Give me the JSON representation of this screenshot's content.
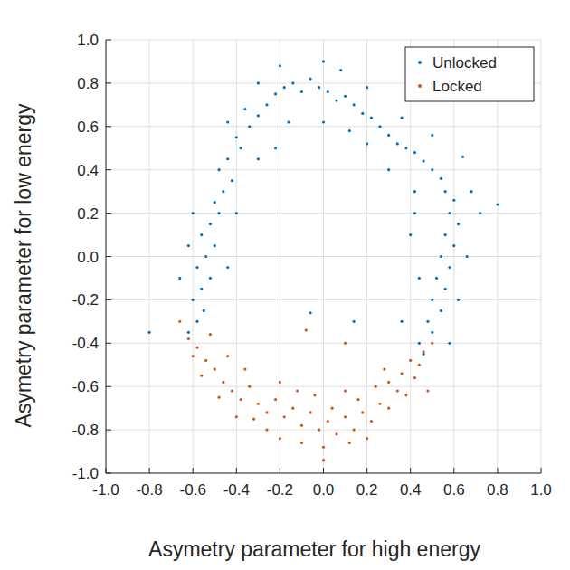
{
  "chart_data": {
    "type": "scatter",
    "x_label": "Asymetry parameter for high energy",
    "y_label": "Asymetry parameter for low energy",
    "xlim": [
      -1.0,
      1.0
    ],
    "ylim": [
      -1.0,
      1.0
    ],
    "xticks": [
      {
        "value": -1.0,
        "label": "-1.0"
      },
      {
        "value": -0.8,
        "label": "-0.8"
      },
      {
        "value": -0.6,
        "label": "-0.6"
      },
      {
        "value": -0.4,
        "label": "-0.4"
      },
      {
        "value": -0.2,
        "label": "-0.2"
      },
      {
        "value": 0,
        "label": "0.0"
      },
      {
        "value": 0.2,
        "label": "0.2"
      },
      {
        "value": 0.4,
        "label": "0.4"
      },
      {
        "value": 0.6,
        "label": "0.6"
      },
      {
        "value": 0.8,
        "label": "0.8"
      },
      {
        "value": 1.0,
        "label": "1.0"
      }
    ],
    "yticks": [
      {
        "value": -1.0,
        "label": "-1.0"
      },
      {
        "value": -0.8,
        "label": "-0.8"
      },
      {
        "value": -0.6,
        "label": "-0.6"
      },
      {
        "value": -0.4,
        "label": "-0.4"
      },
      {
        "value": -0.2,
        "label": "-0.2"
      },
      {
        "value": 0,
        "label": "0.0"
      },
      {
        "value": 0.2,
        "label": "0.2"
      },
      {
        "value": 0.4,
        "label": "0.4"
      },
      {
        "value": 0.6,
        "label": "0.6"
      },
      {
        "value": 0.8,
        "label": "0.8"
      },
      {
        "value": 1.0,
        "label": "1.0"
      }
    ],
    "grid": true,
    "legend": "top-right",
    "series": [
      {
        "name": "Unlocked",
        "color": "#0072bd",
        "marker": "dot",
        "x": [
          -0.62,
          -0.58,
          -0.55,
          -0.6,
          -0.56,
          -0.52,
          -0.58,
          -0.54,
          -0.5,
          -0.56,
          -0.52,
          -0.48,
          -0.5,
          -0.46,
          -0.42,
          -0.48,
          -0.44,
          -0.38,
          -0.4,
          -0.34,
          -0.3,
          -0.36,
          -0.26,
          -0.22,
          -0.18,
          -0.14,
          -0.1,
          -0.06,
          -0.02,
          0.02,
          0.06,
          0.1,
          0.14,
          0.18,
          0.22,
          0.26,
          0.3,
          0.34,
          0.38,
          0.42,
          0.46,
          0.5,
          0.54,
          0.56,
          0.6,
          0.58,
          0.62,
          0.56,
          0.6,
          0.54,
          0.58,
          0.52,
          0.56,
          0.5,
          0.54,
          0.48,
          0.5,
          0.44,
          0.46,
          -0.66,
          -0.62,
          -0.6,
          -0.44,
          -0.3,
          -0.2,
          0.0,
          0.08,
          0.2,
          0.36,
          0.5,
          0.64,
          0.68,
          0.72,
          0.8,
          0.66,
          0.62,
          0.58,
          -0.8,
          -0.44,
          -0.4,
          -0.3,
          -0.16,
          0.0,
          0.12,
          0.3,
          0.42,
          0.44,
          0.36,
          0.2,
          -0.22,
          -0.06,
          0.14,
          0.42,
          0.4
        ],
        "values": [
          -0.35,
          -0.3,
          -0.25,
          -0.2,
          -0.15,
          -0.1,
          -0.05,
          0.0,
          0.05,
          0.1,
          0.15,
          0.2,
          0.25,
          0.3,
          0.35,
          0.4,
          0.45,
          0.5,
          0.55,
          0.6,
          0.65,
          0.68,
          0.7,
          0.75,
          0.78,
          0.8,
          0.76,
          0.82,
          0.78,
          0.76,
          0.72,
          0.74,
          0.7,
          0.66,
          0.64,
          0.6,
          0.56,
          0.52,
          0.5,
          0.48,
          0.44,
          0.4,
          0.36,
          0.3,
          0.26,
          0.2,
          0.15,
          0.1,
          0.05,
          0.0,
          -0.05,
          -0.1,
          -0.15,
          -0.2,
          -0.25,
          -0.3,
          -0.35,
          -0.4,
          -0.45,
          -0.1,
          0.05,
          0.2,
          0.62,
          0.8,
          0.88,
          0.9,
          0.86,
          0.78,
          0.64,
          0.56,
          0.46,
          0.3,
          0.2,
          0.24,
          0.0,
          -0.2,
          -0.4,
          -0.35,
          -0.05,
          0.2,
          0.45,
          0.62,
          0.62,
          0.58,
          0.4,
          0.2,
          -0.1,
          -0.3,
          0.52,
          0.5,
          -0.26,
          -0.3,
          0.3,
          0.1
        ]
      },
      {
        "name": "Locked",
        "color": "#d95319",
        "marker": "dot",
        "x": [
          -0.62,
          -0.58,
          -0.54,
          -0.56,
          -0.5,
          -0.46,
          -0.42,
          -0.48,
          -0.38,
          -0.34,
          -0.3,
          -0.26,
          -0.32,
          -0.22,
          -0.18,
          -0.14,
          -0.1,
          -0.06,
          -0.02,
          0.02,
          0.06,
          0.1,
          0.14,
          0.18,
          0.22,
          0.26,
          0.3,
          0.34,
          0.38,
          0.42,
          0.44,
          0.46,
          0.4,
          0.36,
          0.3,
          -0.52,
          -0.44,
          -0.36,
          -0.2,
          -0.04,
          0.1,
          0.24,
          -0.4,
          -0.2,
          0.0,
          0.12,
          0.2,
          -0.1,
          0.04,
          -0.26,
          0.16,
          -0.12,
          0.28,
          -0.6,
          0.5,
          -0.08,
          0.1,
          -0.66,
          0.48,
          0.0
        ],
        "values": [
          -0.38,
          -0.42,
          -0.48,
          -0.55,
          -0.52,
          -0.58,
          -0.62,
          -0.65,
          -0.66,
          -0.6,
          -0.68,
          -0.72,
          -0.75,
          -0.66,
          -0.74,
          -0.7,
          -0.78,
          -0.72,
          -0.8,
          -0.76,
          -0.82,
          -0.74,
          -0.8,
          -0.72,
          -0.76,
          -0.68,
          -0.7,
          -0.62,
          -0.64,
          -0.56,
          -0.5,
          -0.44,
          -0.48,
          -0.54,
          -0.58,
          -0.36,
          -0.46,
          -0.52,
          -0.58,
          -0.64,
          -0.62,
          -0.6,
          -0.74,
          -0.84,
          -0.88,
          -0.86,
          -0.84,
          -0.86,
          -0.7,
          -0.8,
          -0.66,
          -0.62,
          -0.52,
          -0.46,
          -0.4,
          -0.34,
          -0.4,
          -0.3,
          -0.62,
          -0.94
        ]
      }
    ]
  }
}
